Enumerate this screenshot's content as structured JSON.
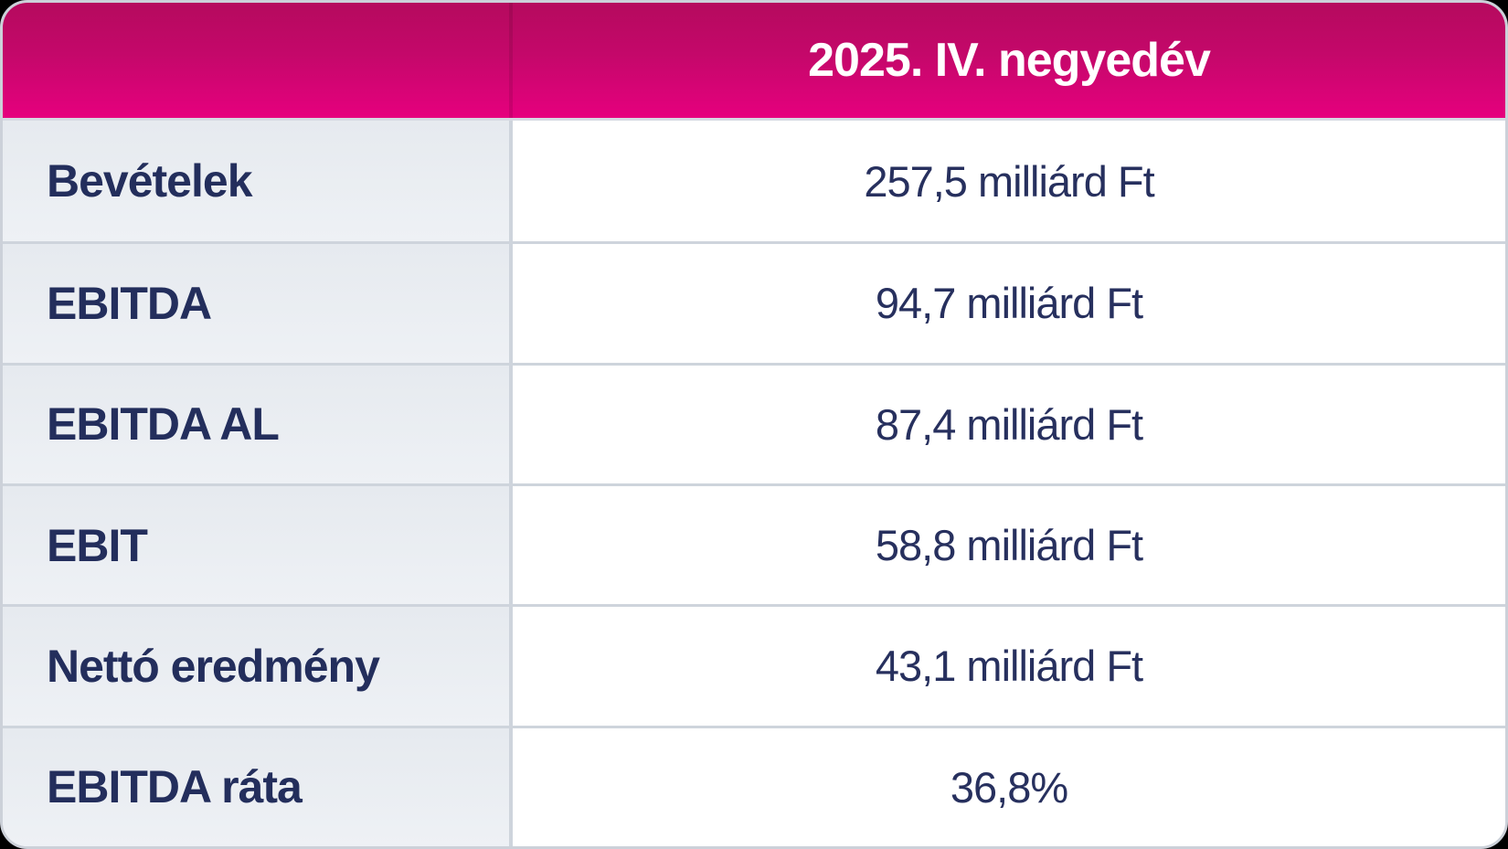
{
  "table": {
    "header": {
      "period_label": "2025. IV. negyedév"
    },
    "rows": [
      {
        "label": "Bevételek",
        "value": "257,5 milliárd Ft"
      },
      {
        "label": "EBITDA",
        "value": "94,7 milliárd Ft"
      },
      {
        "label": "EBITDA AL",
        "value": "87,4 milliárd Ft"
      },
      {
        "label": "EBIT",
        "value": "58,8 milliárd Ft"
      },
      {
        "label": "Nettó eredmény",
        "value": "43,1 milliárd Ft"
      },
      {
        "label": "EBITDA ráta",
        "value": "36,8%"
      }
    ]
  },
  "chart_data": {
    "type": "table",
    "title": "2025. IV. negyedév",
    "columns": [
      "",
      "2025. IV. negyedév"
    ],
    "rows": [
      [
        "Bevételek",
        "257,5 milliárd Ft"
      ],
      [
        "EBITDA",
        "94,7 milliárd Ft"
      ],
      [
        "EBITDA AL",
        "87,4 milliárd Ft"
      ],
      [
        "EBIT",
        "58,8 milliárd Ft"
      ],
      [
        "Nettó eredmény",
        "43,1 milliárd Ft"
      ],
      [
        "EBITDA ráta",
        "36,8%"
      ]
    ],
    "metrics": [
      {
        "name": "Bevételek",
        "value": 257.5,
        "unit": "milliárd Ft"
      },
      {
        "name": "EBITDA",
        "value": 94.7,
        "unit": "milliárd Ft"
      },
      {
        "name": "EBITDA AL",
        "value": 87.4,
        "unit": "milliárd Ft"
      },
      {
        "name": "EBIT",
        "value": 58.8,
        "unit": "milliárd Ft"
      },
      {
        "name": "Nettó eredmény",
        "value": 43.1,
        "unit": "milliárd Ft"
      },
      {
        "name": "EBITDA ráta",
        "value": 36.8,
        "unit": "%"
      }
    ]
  },
  "colors": {
    "header_gradient_top": "#b50a5e",
    "header_gradient_bottom": "#e6007e",
    "header_text": "#ffffff",
    "label_text": "#232e5c",
    "value_text": "#27305e",
    "label_cell_bg": "#e9edf2",
    "value_cell_bg": "#ffffff",
    "divider": "#ced4dc",
    "card_border": "#ccd1d9",
    "page_bg": "#000000"
  }
}
